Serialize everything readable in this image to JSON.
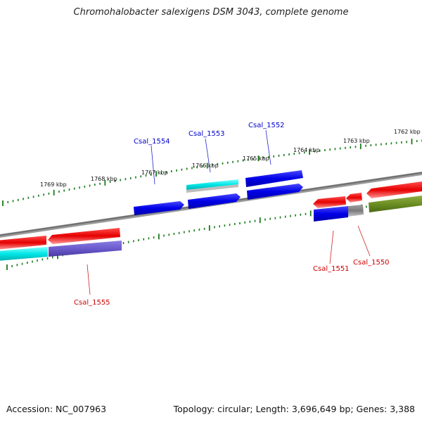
{
  "title": "Chromohalobacter salexigens DSM 3043, complete genome",
  "accession": "Accession: NC_007963",
  "summary": "Topology: circular; Length: 3,696,649 bp; Genes: 3,388",
  "colors": {
    "forward_gene": "#0000e6",
    "reverse_gene": "#e60000",
    "cyan_gene": "#00e6e6",
    "purple_gene": "#6a5acd",
    "olive_gene": "#6b8e23",
    "gray_feature": "#808080",
    "backbone": "#8a8a8a",
    "tick": "#1a7a1a",
    "forward_label": "#0000cc",
    "reverse_label": "#cc0000"
  },
  "scale_labels": {
    "upper": [
      "1769 kbp",
      "1768 kbp",
      "1767 kbp",
      "1766 kbp",
      "1765 kbp",
      "1764 kbp",
      "1763 kbp",
      "1762 kbp"
    ]
  },
  "gene_labels": {
    "forward": [
      "Csal_1554",
      "Csal_1553",
      "Csal_1552"
    ],
    "reverse": [
      "Csal_1551",
      "Csal_1550",
      "Csal_1555"
    ]
  }
}
